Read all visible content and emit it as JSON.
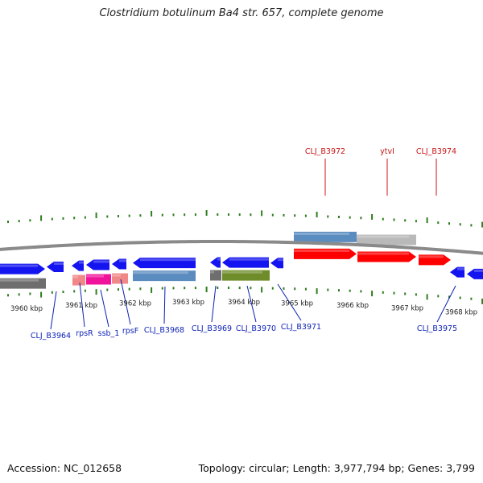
{
  "title": "Clostridium botulinum Ba4 str. 657, complete genome",
  "footer": {
    "accession": "Accession: NC_012658",
    "topology": "Topology: circular; Length: 3,977,794 bp; Genes: 3,799"
  },
  "colors": {
    "backbone": "#8a8a8a",
    "tick": "#2e7d1f",
    "cds": "#1414f0",
    "rrna_red": "#ff0000",
    "steelblue": "#5b8cc0",
    "gray": "#b9b9b9",
    "darkgray": "#6e6e6e",
    "salmon": "#f08888",
    "pink": "#f0149b",
    "olive": "#6e8c2a",
    "label_blue": "#0a1fb4",
    "label_red": "#c81414"
  },
  "scale_labels": [
    "3960 kbp",
    "3961 kbp",
    "3962 kbp",
    "3963 kbp",
    "3964 kbp",
    "3965 kbp",
    "3966 kbp",
    "3967 kbp",
    "3968 kbp"
  ],
  "gene_labels": [
    "CLJ_B3972",
    "ytvI",
    "CLJ_B3974",
    "CLJ_B3964",
    "rpsR",
    "ssb_1",
    "rpsF",
    "CLJ_B3968",
    "CLJ_B3969",
    "CLJ_B3970",
    "CLJ_B3971",
    "CLJ_B3975"
  ]
}
